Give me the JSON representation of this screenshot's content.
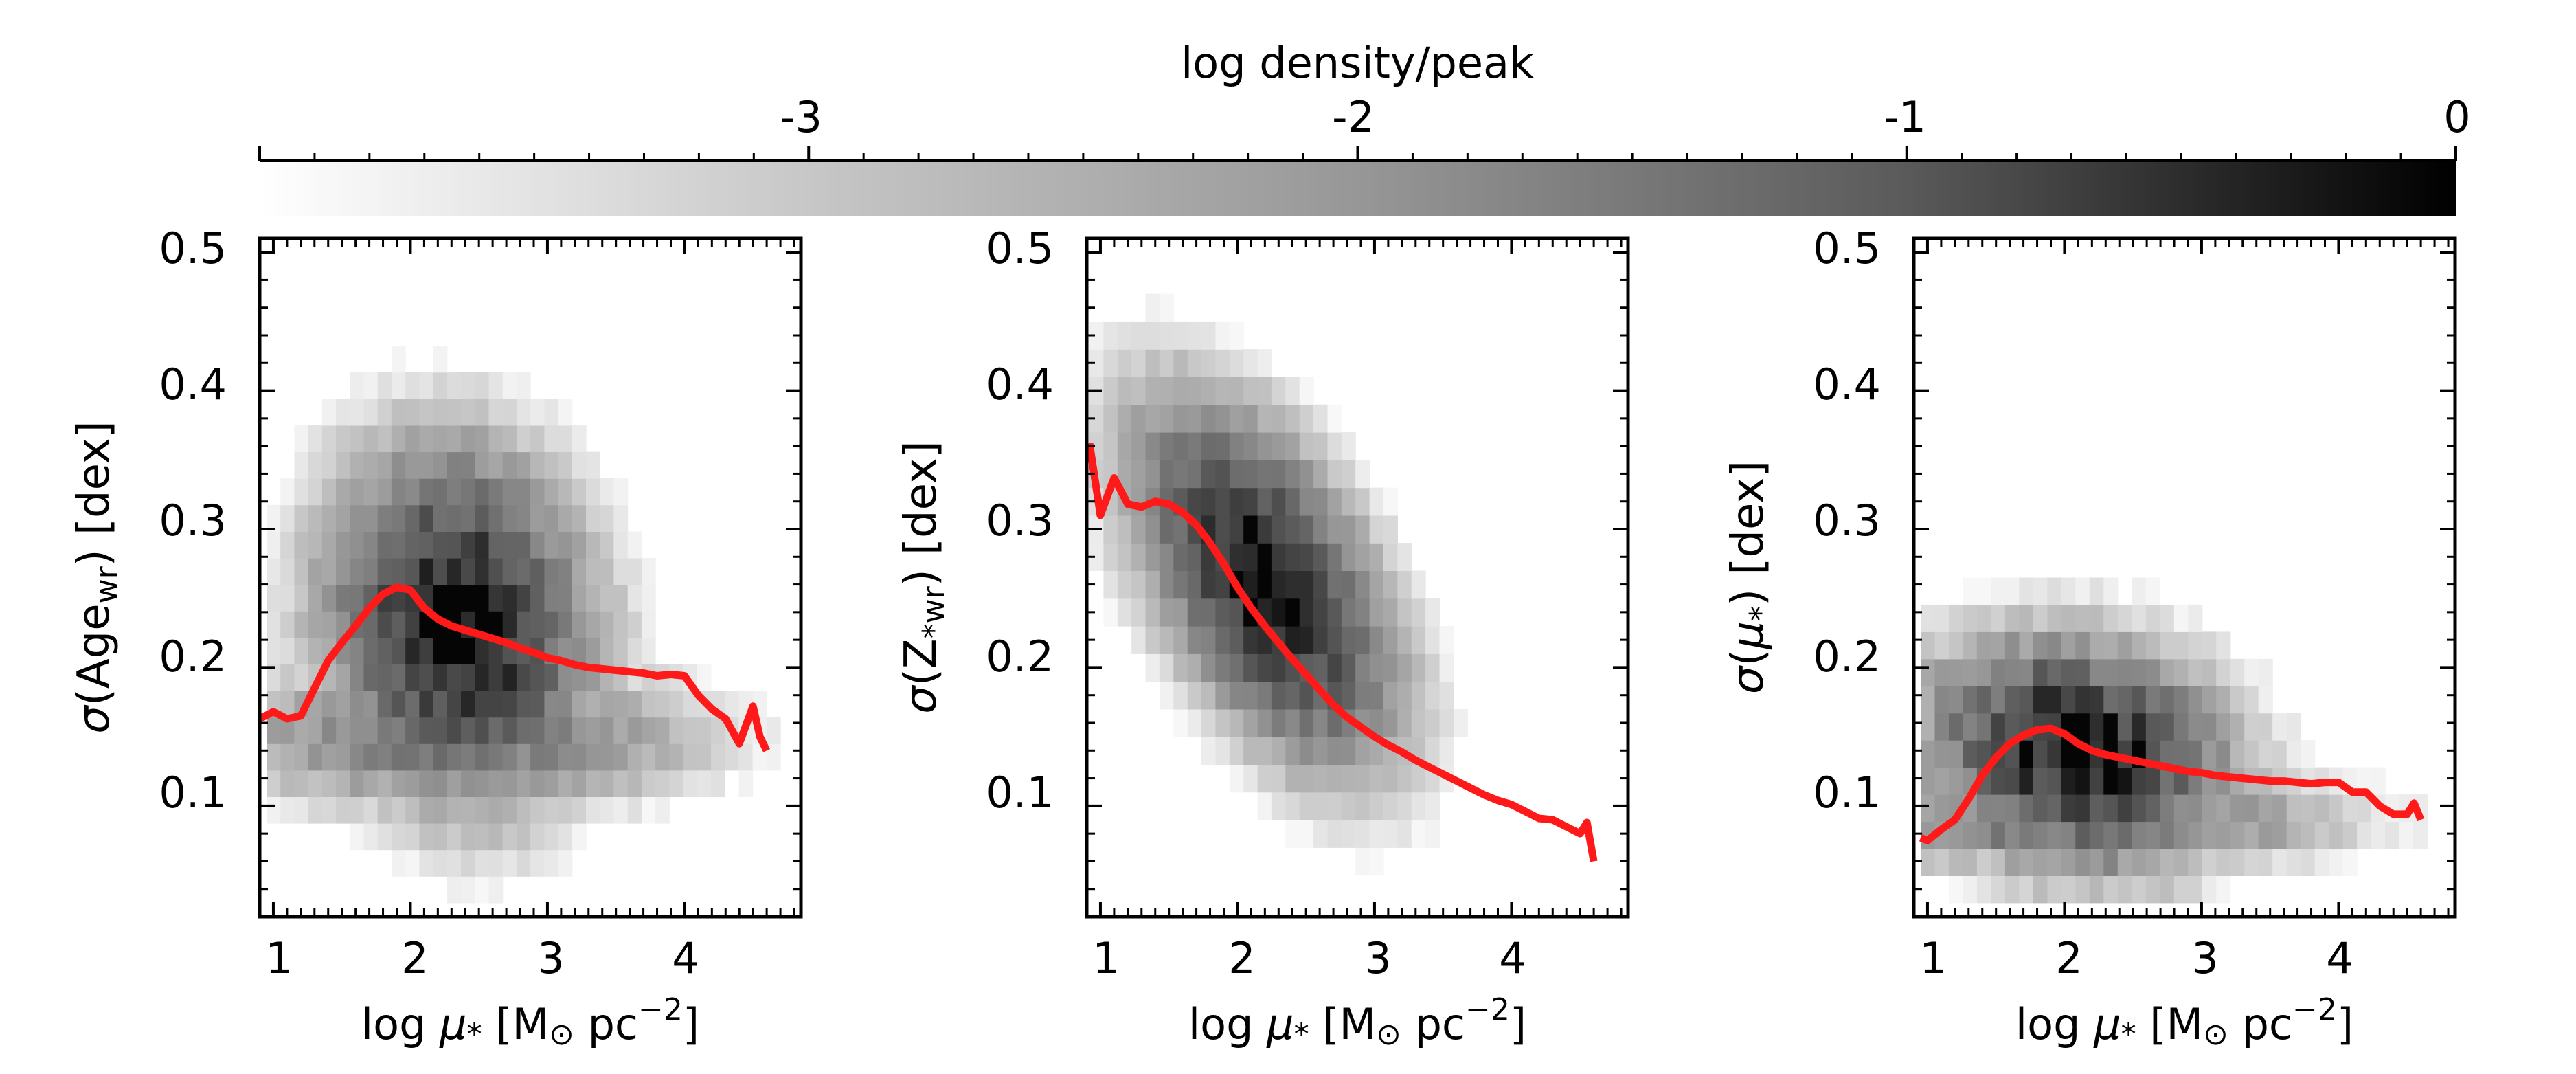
{
  "colorbar": {
    "label": "log density/peak",
    "range": [
      -4,
      0
    ],
    "ticks": [
      -3,
      -2,
      -1,
      0
    ],
    "tick_labels": [
      "-3",
      "-2",
      "-1",
      "0"
    ],
    "colormap": "grey-white-to-black"
  },
  "colors": {
    "median_line": "#ff1a1a",
    "axes": "#000000",
    "background": "#ffffff"
  },
  "chart_data": [
    {
      "type": "heatmap",
      "id": "age",
      "xlabel": "log μ* [M⊙ pc−2]",
      "ylabel": "σ(Age wr) [dex]",
      "ylabel_parts": {
        "prefix": "σ(Age",
        "sub": "wr",
        "suffix": ") [dex]"
      },
      "xlim": [
        0.9,
        4.85
      ],
      "ylim": [
        0.02,
        0.51
      ],
      "xticks": [
        1,
        2,
        3,
        4
      ],
      "xtick_labels": [
        "1",
        "2",
        "3",
        "4"
      ],
      "yticks": [
        0.1,
        0.2,
        0.3,
        0.4,
        0.5
      ],
      "ytick_labels": [
        "0.1",
        "0.2",
        "0.3",
        "0.4",
        "0.5"
      ],
      "density": {
        "x_range": [
          0.95,
          4.7
        ],
        "y_range": [
          0.03,
          0.49
        ],
        "peak_x": 2.35,
        "peak_y": 0.22,
        "widths": [
          0.95,
          0.12
        ],
        "ridge_y": [
          0.25,
          0.2
        ],
        "falloff": 2.6,
        "extra_band": [
          0.15,
          0.03
        ],
        "noise": 0.55
      },
      "median": {
        "x": [
          0.9,
          1.0,
          1.1,
          1.2,
          1.3,
          1.4,
          1.5,
          1.6,
          1.7,
          1.8,
          1.9,
          2.0,
          2.1,
          2.2,
          2.3,
          2.4,
          2.5,
          2.6,
          2.7,
          2.8,
          2.9,
          3.0,
          3.1,
          3.2,
          3.3,
          3.4,
          3.5,
          3.6,
          3.7,
          3.8,
          3.9,
          4.0,
          4.1,
          4.2,
          4.3,
          4.4,
          4.5,
          4.55,
          4.6
        ],
        "y": [
          0.163,
          0.168,
          0.163,
          0.165,
          0.185,
          0.205,
          0.218,
          0.23,
          0.243,
          0.253,
          0.258,
          0.256,
          0.243,
          0.235,
          0.23,
          0.227,
          0.224,
          0.221,
          0.218,
          0.214,
          0.211,
          0.207,
          0.205,
          0.202,
          0.2,
          0.199,
          0.198,
          0.197,
          0.196,
          0.194,
          0.195,
          0.194,
          0.18,
          0.17,
          0.163,
          0.145,
          0.172,
          0.15,
          0.14
        ]
      }
    },
    {
      "type": "heatmap",
      "id": "metallicity",
      "xlabel": "log μ* [M⊙ pc−2]",
      "ylabel": "σ(Z*wr) [dex]",
      "ylabel_parts": {
        "prefix": "σ(Z",
        "sub": "*wr",
        "suffix": ") [dex]"
      },
      "xlim": [
        0.9,
        4.85
      ],
      "ylim": [
        0.02,
        0.51
      ],
      "xticks": [
        1,
        2,
        3,
        4
      ],
      "xtick_labels": [
        "1",
        "2",
        "3",
        "4"
      ],
      "yticks": [
        0.1,
        0.2,
        0.3,
        0.4,
        0.5
      ],
      "ytick_labels": [
        "0.1",
        "0.2",
        "0.3",
        "0.4",
        "0.5"
      ],
      "density": {
        "x_range": [
          0.92,
          4.7
        ],
        "y_range": [
          0.03,
          0.51
        ],
        "peak_x": 2.2,
        "peak_y": 0.26,
        "widths": [
          0.9,
          0.1
        ],
        "ridge_y": [
          0.36,
          0.07
        ],
        "falloff": 2.4,
        "extra_band": [
          0.0,
          0.0
        ],
        "noise": 0.45
      },
      "median": {
        "x": [
          0.92,
          1.0,
          1.1,
          1.2,
          1.3,
          1.4,
          1.5,
          1.6,
          1.7,
          1.8,
          1.9,
          2.0,
          2.1,
          2.2,
          2.3,
          2.4,
          2.5,
          2.6,
          2.7,
          2.8,
          2.9,
          3.0,
          3.1,
          3.2,
          3.3,
          3.4,
          3.5,
          3.6,
          3.7,
          3.8,
          3.9,
          4.0,
          4.1,
          4.2,
          4.3,
          4.4,
          4.5,
          4.55,
          4.6
        ],
        "y": [
          0.362,
          0.31,
          0.337,
          0.318,
          0.316,
          0.32,
          0.318,
          0.312,
          0.303,
          0.29,
          0.275,
          0.258,
          0.243,
          0.23,
          0.218,
          0.206,
          0.195,
          0.184,
          0.173,
          0.164,
          0.157,
          0.15,
          0.144,
          0.139,
          0.133,
          0.128,
          0.123,
          0.118,
          0.113,
          0.108,
          0.104,
          0.101,
          0.096,
          0.091,
          0.09,
          0.085,
          0.08,
          0.088,
          0.06
        ]
      }
    },
    {
      "type": "heatmap",
      "id": "surface-density",
      "xlabel": "log μ* [M⊙ pc−2]",
      "ylabel": "σ(μ*) [dex]",
      "ylabel_parts": {
        "prefix": "σ(μ",
        "sub": "*",
        "suffix": ") [dex]"
      },
      "xlim": [
        0.9,
        4.85
      ],
      "ylim": [
        0.02,
        0.51
      ],
      "xticks": [
        1,
        2,
        3,
        4
      ],
      "xtick_labels": [
        "1",
        "2",
        "3",
        "4"
      ],
      "yticks": [
        0.1,
        0.2,
        0.3,
        0.4,
        0.5
      ],
      "ytick_labels": [
        "0.1",
        "0.2",
        "0.3",
        "0.4",
        "0.5"
      ],
      "density": {
        "x_range": [
          0.95,
          4.75
        ],
        "y_range": [
          0.03,
          0.5
        ],
        "peak_x": 2.1,
        "peak_y": 0.16,
        "widths": [
          1.05,
          0.075
        ],
        "ridge_y": [
          0.15,
          0.11
        ],
        "falloff": 2.4,
        "extra_band": [
          0.09,
          0.02
        ],
        "noise": 0.7
      },
      "median": {
        "x": [
          0.95,
          1.0,
          1.1,
          1.2,
          1.3,
          1.4,
          1.5,
          1.6,
          1.7,
          1.8,
          1.9,
          2.0,
          2.1,
          2.2,
          2.3,
          2.4,
          2.5,
          2.6,
          2.7,
          2.8,
          2.9,
          3.0,
          3.1,
          3.2,
          3.3,
          3.4,
          3.5,
          3.6,
          3.7,
          3.8,
          3.9,
          4.0,
          4.1,
          4.2,
          4.3,
          4.4,
          4.5,
          4.55,
          4.6
        ],
        "y": [
          0.077,
          0.075,
          0.083,
          0.09,
          0.105,
          0.122,
          0.135,
          0.145,
          0.151,
          0.155,
          0.156,
          0.152,
          0.145,
          0.14,
          0.137,
          0.135,
          0.133,
          0.131,
          0.129,
          0.127,
          0.125,
          0.124,
          0.122,
          0.121,
          0.12,
          0.119,
          0.118,
          0.118,
          0.117,
          0.116,
          0.117,
          0.117,
          0.11,
          0.11,
          0.1,
          0.094,
          0.094,
          0.102,
          0.09
        ]
      }
    }
  ]
}
